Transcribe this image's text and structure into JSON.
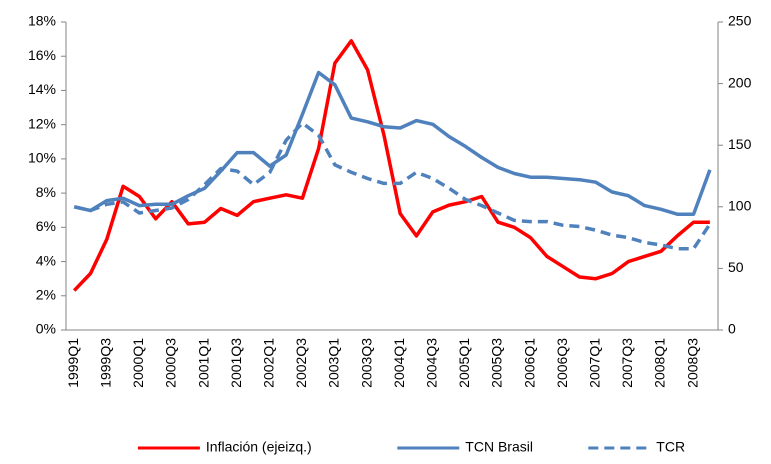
{
  "chart_data": {
    "type": "line",
    "categories": [
      "1999Q1",
      null,
      "1999Q3",
      null,
      "2000Q1",
      null,
      "2000Q3",
      null,
      "2001Q1",
      null,
      "2001Q3",
      null,
      "2002Q1",
      null,
      "2002Q3",
      null,
      "2003Q1",
      null,
      "2003Q3",
      null,
      "2004Q1",
      null,
      "2004Q3",
      null,
      "2005Q1",
      null,
      "2005Q3",
      null,
      "2006Q1",
      null,
      "2006Q3",
      null,
      "2007Q1",
      null,
      "2007Q3",
      null,
      "2008Q1",
      null,
      "2008Q3",
      null
    ],
    "series": [
      {
        "name": "Inflación (ejeizq.)",
        "color": "#ff0000",
        "line_style": "solid",
        "values": [
          2.3,
          3.3,
          5.3,
          8.4,
          7.8,
          6.5,
          7.5,
          6.2,
          6.3,
          7.1,
          6.7,
          7.5,
          7.7,
          7.9,
          7.7,
          10.6,
          15.6,
          16.9,
          15.2,
          11.4,
          6.8,
          5.5,
          6.9,
          7.3,
          7.5,
          7.8,
          6.3,
          6.0,
          5.4,
          4.3,
          3.7,
          3.1,
          3.0,
          3.3,
          4.0,
          4.3,
          4.6,
          5.5,
          6.3,
          6.3
        ]
      },
      {
        "name": "TCN Brasil",
        "color": "#4f81bd",
        "line_style": "solid",
        "axis": "y2",
        "values": [
          100,
          97,
          105,
          107,
          101,
          102,
          102,
          109,
          115,
          129,
          144,
          144,
          133,
          142,
          175,
          209,
          199,
          172,
          169,
          165,
          164,
          170,
          167,
          157,
          149,
          140,
          132,
          127,
          124,
          124,
          123,
          122,
          120,
          112,
          109,
          101,
          98,
          94,
          94,
          130
        ]
      },
      {
        "name": "TCR",
        "color": "#4f81bd",
        "line_style": "dashed",
        "axis": "y2",
        "values": [
          100,
          97,
          102,
          104,
          95,
          97,
          99,
          106,
          118,
          131,
          129,
          118,
          128,
          154,
          168,
          158,
          134,
          128,
          123,
          119,
          119,
          128,
          123,
          115,
          106,
          101,
          95,
          89,
          88,
          88,
          85,
          84,
          81,
          77,
          75,
          71,
          69,
          66,
          66,
          86
        ]
      }
    ],
    "ylim": [
      0,
      18
    ],
    "yticks": [
      {
        "value": 0,
        "label": "0%"
      },
      {
        "value": 2,
        "label": "2%"
      },
      {
        "value": 4,
        "label": "4%"
      },
      {
        "value": 6,
        "label": "6%"
      },
      {
        "value": 8,
        "label": "8%"
      },
      {
        "value": 10,
        "label": "10%"
      },
      {
        "value": 12,
        "label": "12%"
      },
      {
        "value": 14,
        "label": "14%"
      },
      {
        "value": 16,
        "label": "16%"
      },
      {
        "value": 18,
        "label": "18%"
      }
    ],
    "y2lim": [
      0,
      250
    ],
    "y2ticks": [
      0,
      50,
      100,
      150,
      200,
      250
    ],
    "grid": false,
    "legend": "bottom"
  }
}
